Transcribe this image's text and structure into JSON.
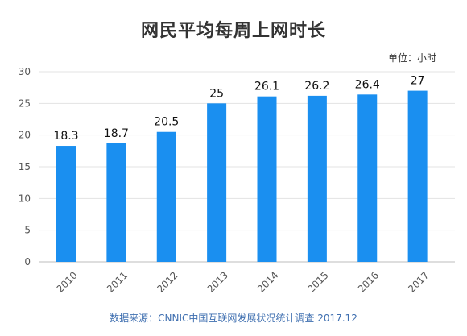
{
  "title": "网民平均每周上网时长",
  "unit": "单位：小时",
  "source": "数据来源：CNNIC中国互联网发展状况统计调查 2017.12",
  "chart_data": {
    "type": "bar",
    "title": "网民平均每周上网时长",
    "categories": [
      "2010",
      "2011",
      "2012",
      "2013",
      "2014",
      "2015",
      "2016",
      "2017"
    ],
    "values": [
      18.3,
      18.7,
      20.5,
      25,
      26.1,
      26.2,
      26.4,
      27
    ],
    "value_labels": [
      "18.3",
      "18.7",
      "20.5",
      "25",
      "26.1",
      "26.2",
      "26.4",
      "27"
    ],
    "yticks": [
      0,
      5,
      10,
      15,
      20,
      25,
      30
    ],
    "ylim": [
      0,
      30
    ],
    "grid": true,
    "bar_color": "#1a8ff0",
    "grid_color": "#e3e3e3"
  }
}
